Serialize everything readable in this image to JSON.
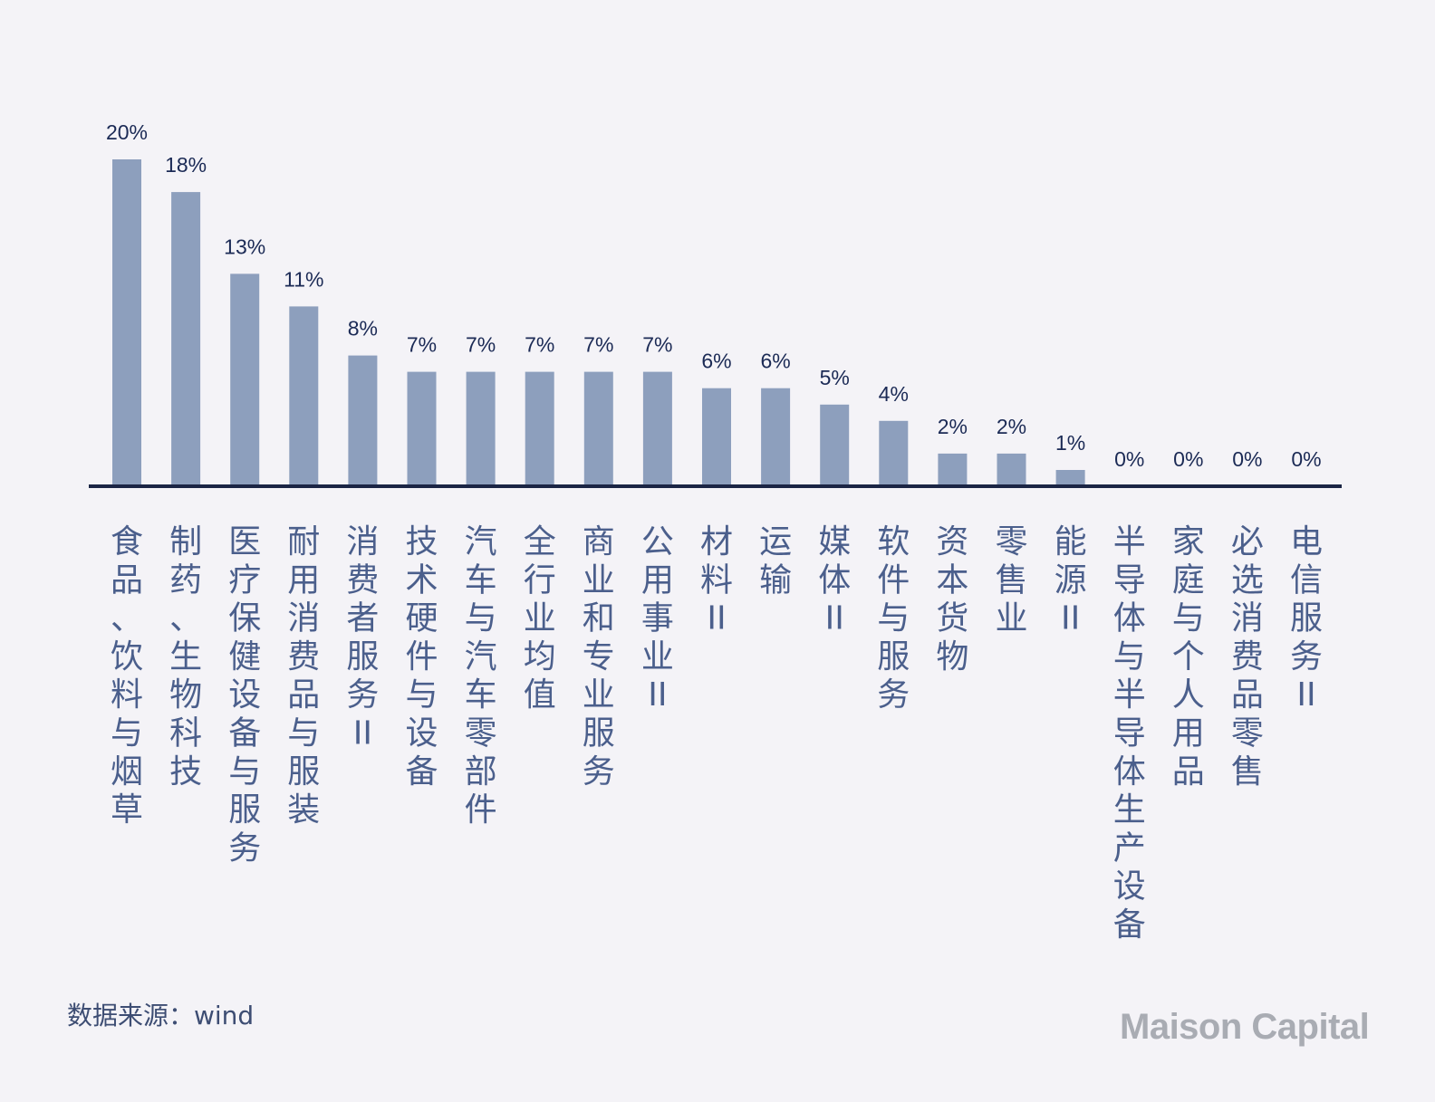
{
  "chart_data": {
    "type": "bar",
    "categories": [
      "食品、饮料与烟草",
      "制药、生物科技",
      "医疗保健设备与服务",
      "耐用消费品与服装",
      "消费者服务II",
      "技术硬件与设备",
      "汽车与汽车零部件",
      "全行业均值",
      "商业和专业服务",
      "公用事业II",
      "材料II",
      "运输",
      "媒体II",
      "软件与服务",
      "资本货物",
      "零售业",
      "能源II",
      "半导体与半导体生产设备",
      "家庭与个人用品",
      "必选消费品零售",
      "电信服务II"
    ],
    "values": [
      20,
      18,
      13,
      11,
      8,
      7,
      7,
      7,
      7,
      7,
      6,
      6,
      5,
      4,
      2,
      2,
      1,
      0,
      0,
      0,
      0
    ],
    "value_labels": [
      "20%",
      "18%",
      "13%",
      "11%",
      "8%",
      "7%",
      "7%",
      "7%",
      "7%",
      "7%",
      "6%",
      "6%",
      "5%",
      "4%",
      "2%",
      "2%",
      "1%",
      "0%",
      "0%",
      "0%",
      "0%"
    ],
    "ylim": [
      0,
      20
    ],
    "grid": false,
    "colors": {
      "bar": "#8d9fbd",
      "axis": "#1b2545",
      "value_text": "#1b2a55",
      "category_text": "#4b5f8c"
    }
  },
  "footer": {
    "source": "数据来源：wind",
    "logo": "Maison Capital"
  }
}
